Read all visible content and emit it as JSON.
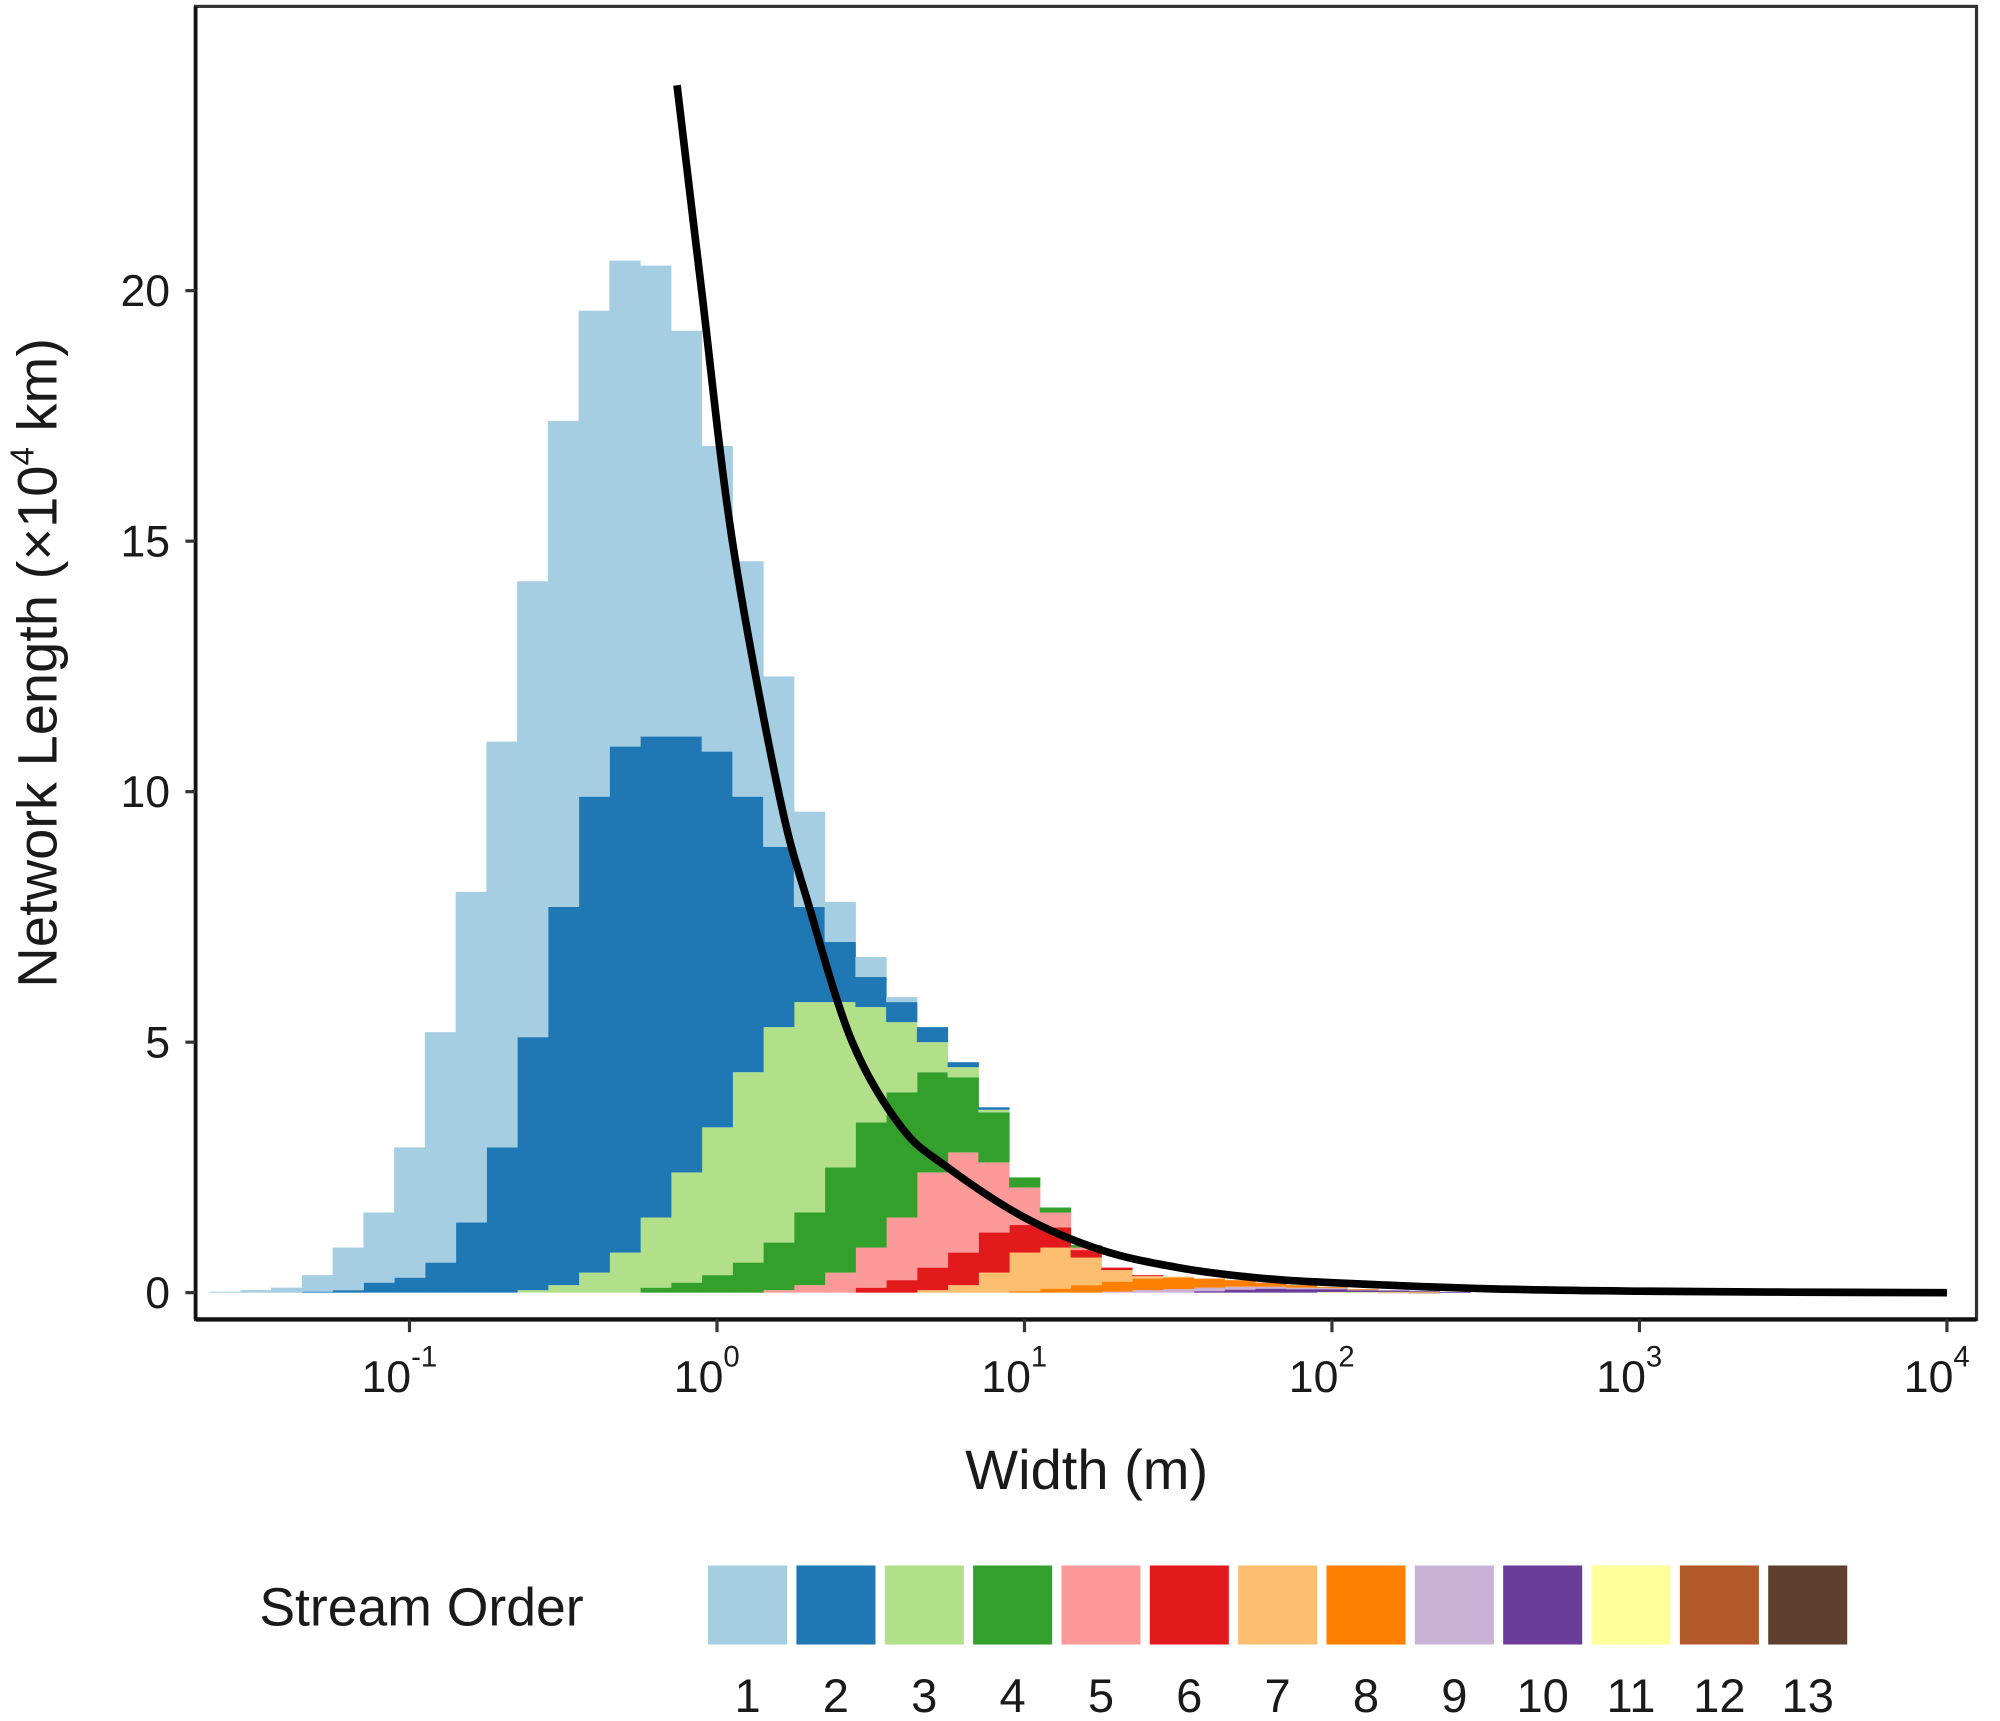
{
  "chart_data": {
    "type": "bar",
    "subtype": "stacked-histogram",
    "xlabel": "Width (m)",
    "x_scale": "log10",
    "xlim_log10": [
      -1.7,
      4.1
    ],
    "ylabel": {
      "prefix": "Network Length (×10",
      "exp": "4",
      "suffix": " km)"
    },
    "ylim": [
      -0.5,
      25
    ],
    "y_ticks": [
      "0",
      "5",
      "10",
      "15",
      "20"
    ],
    "y_tick_values": [
      0,
      5,
      10,
      15,
      20
    ],
    "x_ticks": [
      {
        "base": "10",
        "exp": "-1",
        "log10": -1
      },
      {
        "base": "10",
        "exp": "0",
        "log10": 0
      },
      {
        "base": "10",
        "exp": "1",
        "log10": 1
      },
      {
        "base": "10",
        "exp": "2",
        "log10": 2
      },
      {
        "base": "10",
        "exp": "3",
        "log10": 3
      },
      {
        "base": "10",
        "exp": "4",
        "log10": 4
      }
    ],
    "bin_width_log10": 0.1,
    "legend": {
      "title": "Stream Order",
      "placement": "bottom"
    },
    "series": [
      {
        "name": "1",
        "color": "#a6cee3",
        "from_log10": -1.6,
        "values": [
          0.02,
          0.05,
          0.1,
          0.33,
          0.85,
          1.4,
          2.6,
          4.6,
          6.6,
          8.1,
          9.1,
          9.7,
          9.7,
          9.7,
          9.4,
          8.1,
          6.1,
          4.7,
          3.4,
          1.9,
          0.8,
          0.4,
          0.1
        ]
      },
      {
        "name": "2",
        "color": "#1f78b4",
        "from_log10": -1.3,
        "values": [
          0.02,
          0.05,
          0.2,
          0.3,
          0.6,
          1.4,
          2.9,
          5.05,
          7.55,
          9.5,
          10.1,
          9.6,
          8.7,
          7.5,
          5.5,
          3.6,
          1.9,
          1.2,
          0.6,
          0.4,
          0.3,
          0.1,
          0.05
        ]
      },
      {
        "name": "3",
        "color": "#b2df8a",
        "from_log10": -0.6,
        "values": [
          0.05,
          0.15,
          0.4,
          0.8,
          1.4,
          2.2,
          2.95,
          3.8,
          4.3,
          4.2,
          3.3,
          2.3,
          1.4,
          0.6,
          0.2,
          0.05
        ]
      },
      {
        "name": "4",
        "color": "#33a02c",
        "from_log10": -0.2,
        "values": [
          0.1,
          0.2,
          0.35,
          0.6,
          0.95,
          1.45,
          2.1,
          2.5,
          2.5,
          2.0,
          1.5,
          1.0,
          0.2,
          0.1,
          0.05
        ]
      },
      {
        "name": "5",
        "color": "#fb9a99",
        "from_log10": 0.2,
        "values": [
          0.05,
          0.15,
          0.4,
          0.8,
          1.25,
          1.9,
          2.0,
          1.4,
          0.75,
          0.3,
          0.05
        ]
      },
      {
        "name": "6",
        "color": "#e31a1c",
        "from_log10": 0.5,
        "values": [
          0.1,
          0.25,
          0.45,
          0.65,
          0.8,
          0.55,
          0.4,
          0.15,
          0.05,
          0.02
        ]
      },
      {
        "name": "7",
        "color": "#fdbf6f",
        "from_log10": 0.7,
        "values": [
          0.05,
          0.15,
          0.4,
          0.77,
          0.82,
          0.55,
          0.23,
          0.05,
          0.02
        ]
      },
      {
        "name": "8",
        "color": "#ff7f00",
        "from_log10": 1.0,
        "values": [
          0.03,
          0.08,
          0.15,
          0.2,
          0.23,
          0.23,
          0.18,
          0.13,
          0.08,
          0.05,
          0.02,
          0.01
        ]
      },
      {
        "name": "9",
        "color": "#cab2d6",
        "from_log10": 1.3,
        "values": [
          0.02,
          0.05,
          0.07,
          0.07,
          0.06,
          0.04,
          0.03,
          0.02,
          0.01
        ]
      },
      {
        "name": "10",
        "color": "#6a3d9a",
        "from_log10": 1.6,
        "values": [
          0.03,
          0.06,
          0.08,
          0.07,
          0.06,
          0.04,
          0.03,
          0.02,
          0.01
        ]
      },
      {
        "name": "11",
        "color": "#ffff99",
        "from_log10": 2.0,
        "values": [
          0.01,
          0.01,
          0.01,
          0.01
        ]
      },
      {
        "name": "12",
        "color": "#b15928",
        "from_log10": 2.2,
        "values": [
          0.005,
          0.005
        ]
      },
      {
        "name": "13",
        "color": "#5e3f30",
        "from_log10": 2.3,
        "values": [
          0.003
        ]
      }
    ],
    "fit_curve": {
      "color": "#000000",
      "points_log10_x_y": [
        [
          -0.13,
          24.1
        ],
        [
          -0.05,
          20
        ],
        [
          0.05,
          15
        ],
        [
          0.2,
          10
        ],
        [
          0.3,
          7.7
        ],
        [
          0.44,
          5
        ],
        [
          0.6,
          3.3
        ],
        [
          0.75,
          2.5
        ],
        [
          1.0,
          1.5
        ],
        [
          1.25,
          0.85
        ],
        [
          1.5,
          0.5
        ],
        [
          1.75,
          0.3
        ],
        [
          2.0,
          0.2
        ],
        [
          2.5,
          0.08
        ],
        [
          3.0,
          0.03
        ],
        [
          3.5,
          0.01
        ],
        [
          4.0,
          0.0
        ]
      ]
    }
  }
}
